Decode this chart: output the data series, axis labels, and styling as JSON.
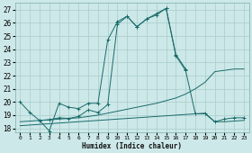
{
  "xlabel": "Humidex (Indice chaleur)",
  "xlim": [
    -0.5,
    23.5
  ],
  "ylim": [
    17.7,
    27.5
  ],
  "xticks": [
    0,
    1,
    2,
    3,
    4,
    5,
    6,
    7,
    8,
    9,
    10,
    11,
    12,
    13,
    14,
    15,
    16,
    17,
    18,
    19,
    20,
    21,
    22,
    23
  ],
  "yticks": [
    18,
    19,
    20,
    21,
    22,
    23,
    24,
    25,
    26,
    27
  ],
  "background_color": "#cde8e8",
  "grid_color": "#a8cccc",
  "line_color": "#1a6b6b",
  "series": [
    {
      "x": [
        0,
        1,
        2,
        3,
        4,
        5,
        6,
        7,
        8,
        9,
        10,
        11,
        12,
        13,
        14,
        15,
        16,
        17
      ],
      "y": [
        20.0,
        19.2,
        18.6,
        17.8,
        19.9,
        19.6,
        19.5,
        19.9,
        19.9,
        24.7,
        26.1,
        26.5,
        25.7,
        26.3,
        26.7,
        27.1,
        23.6,
        22.5
      ],
      "marker": true
    },
    {
      "x": [
        0,
        1,
        2,
        3,
        4,
        5,
        6,
        7,
        8,
        9,
        10,
        11,
        12,
        13,
        14,
        15,
        16,
        17,
        18,
        19,
        20,
        21,
        22,
        23
      ],
      "y": [
        18.5,
        18.55,
        18.6,
        18.65,
        18.7,
        18.75,
        18.8,
        18.9,
        19.0,
        19.15,
        19.3,
        19.45,
        19.6,
        19.75,
        19.9,
        20.1,
        20.3,
        20.6,
        21.0,
        21.5,
        22.3,
        22.4,
        22.5,
        22.5
      ],
      "marker": false
    },
    {
      "x": [
        0,
        1,
        2,
        3,
        4,
        5,
        6,
        7,
        8,
        9,
        10,
        11,
        12,
        13,
        14,
        15,
        16,
        17,
        18,
        19,
        20,
        21,
        22,
        23
      ],
      "y": [
        18.2,
        18.25,
        18.3,
        18.35,
        18.4,
        18.45,
        18.5,
        18.55,
        18.6,
        18.65,
        18.7,
        18.75,
        18.8,
        18.85,
        18.9,
        18.95,
        19.0,
        19.05,
        19.1,
        19.15,
        18.5,
        18.5,
        18.55,
        18.6
      ],
      "marker": false
    },
    {
      "x": [
        2,
        3,
        4,
        5,
        6,
        7,
        8,
        9,
        10,
        11,
        12,
        13,
        14,
        15,
        16,
        17,
        18,
        19,
        20,
        21,
        22,
        23
      ],
      "y": [
        18.6,
        18.65,
        18.8,
        18.75,
        18.9,
        19.4,
        19.2,
        19.8,
        25.9,
        26.5,
        25.7,
        26.3,
        26.6,
        27.1,
        23.5,
        22.4,
        19.1,
        19.1,
        18.5,
        18.7,
        18.8,
        18.8
      ],
      "marker": true
    }
  ]
}
